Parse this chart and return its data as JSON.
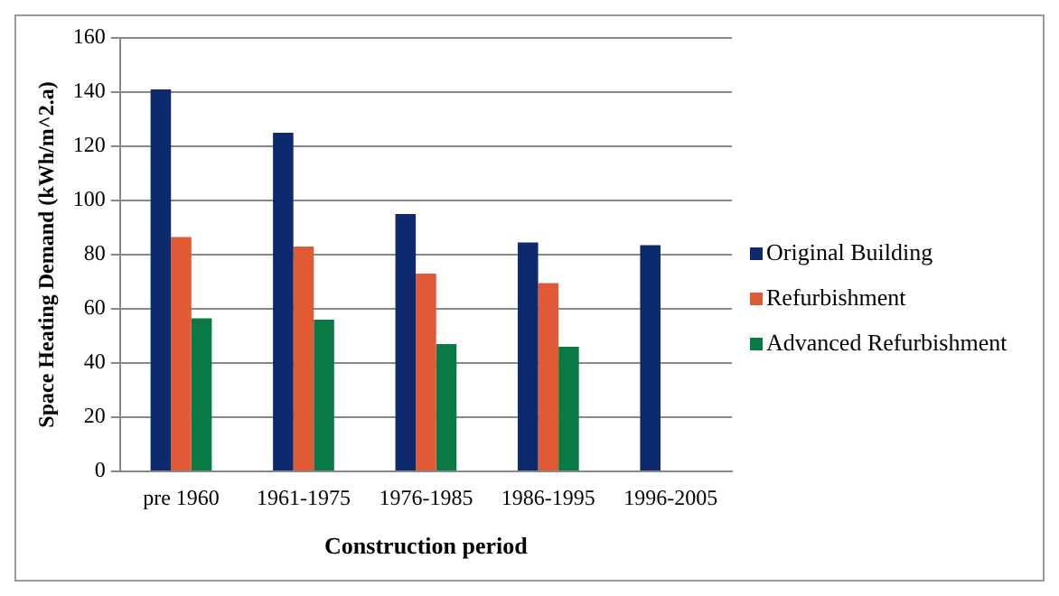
{
  "chart_data": {
    "type": "bar",
    "xlabel": "Construction period",
    "ylabel": "Space Heating Demand (kWh/m^2.a)",
    "categories": [
      "pre 1960",
      "1961-1975",
      "1976-1985",
      "1986-1995",
      "1996-2005"
    ],
    "series": [
      {
        "name": "Original Building",
        "color": "#0d2a6e",
        "values": [
          141,
          125,
          95,
          84.5,
          83.5
        ]
      },
      {
        "name": "Refurbishment",
        "color": "#e05a35",
        "values": [
          86.5,
          83,
          73,
          69.5,
          null
        ]
      },
      {
        "name": "Advanced Refurbishment",
        "color": "#0a7a45",
        "values": [
          56.5,
          56,
          47,
          46,
          null
        ]
      }
    ],
    "ylim": [
      0,
      160
    ],
    "yticks": [
      0,
      20,
      40,
      60,
      80,
      100,
      120,
      140,
      160
    ],
    "grid": "y",
    "legend": "right"
  }
}
